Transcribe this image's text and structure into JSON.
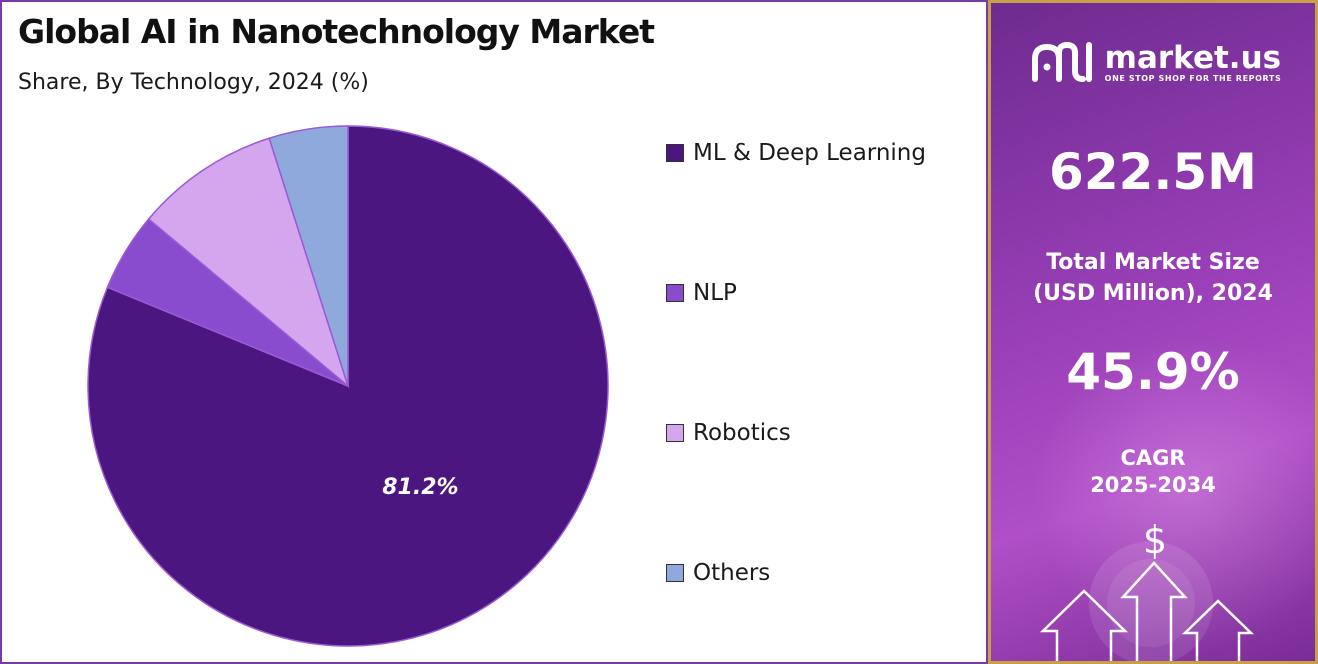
{
  "chart_data": {
    "type": "pie",
    "title": "Global AI in Nanotechnology Market",
    "subtitle": "Share, By Technology, 2024 (%)",
    "slices": [
      {
        "name": "ML & Deep Learning",
        "value": 81.2,
        "color": "#4c1680",
        "label": "81.2%"
      },
      {
        "name": "NLP",
        "value": 4.9,
        "color": "#8a4ccf",
        "label": ""
      },
      {
        "name": "Robotics",
        "value": 9.0,
        "color": "#d4a6ee",
        "label": ""
      },
      {
        "name": "Others",
        "value": 4.9,
        "color": "#8fa9dc",
        "label": ""
      }
    ],
    "legend_position": "right"
  },
  "sidebar": {
    "brand_name": "market.us",
    "brand_tagline": "ONE STOP SHOP FOR THE REPORTS",
    "market_size_value": "622.5M",
    "market_size_label_line1": "Total Market Size",
    "market_size_label_line2": "(USD Million), 2024",
    "cagr_value": "45.9%",
    "cagr_label_line1": "CAGR",
    "cagr_label_line2": "2025-2034",
    "dollar_symbol": "$"
  },
  "colors": {
    "border_left": "#7a3aa6",
    "border_right": "#c9a047",
    "panel_bg": "#9a3fb8"
  }
}
